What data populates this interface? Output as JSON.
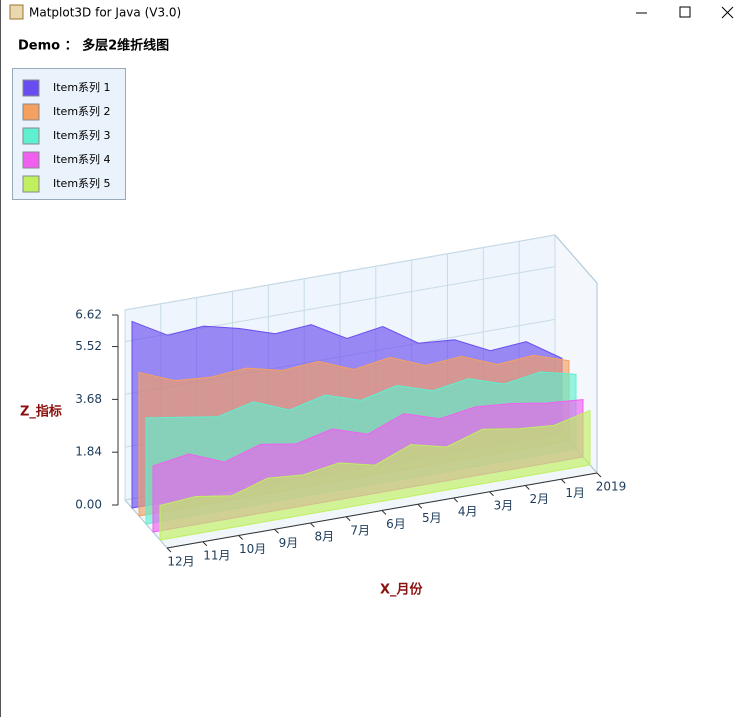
{
  "window": {
    "title": "Matplot3D for Java (V3.0)"
  },
  "chart_data": {
    "type": "area3d",
    "title": "Demo ： 多层2维折线图",
    "xlabel": "X_月份",
    "zlabel": "Z_指标",
    "categories": [
      "12月",
      "11月",
      "10月",
      "9月",
      "8月",
      "7月",
      "6月",
      "5月",
      "4月",
      "3月",
      "2月",
      "1月",
      "2019"
    ],
    "zlim": [
      0,
      6.62
    ],
    "zticks": [
      {
        "value": 0,
        "label": "0.00"
      },
      {
        "value": 1.84,
        "label": "1.84"
      },
      {
        "value": 3.68,
        "label": "3.68"
      },
      {
        "value": 5.52,
        "label": "5.52"
      },
      {
        "value": 6.62,
        "label": "6.62"
      }
    ],
    "grid": true,
    "legend": "upper left",
    "series": [
      {
        "name": "Item系列 1",
        "color": "#6a4df0",
        "values": [
          6.5,
          5.8,
          5.9,
          5.6,
          5.2,
          5.3,
          4.6,
          4.8,
          4.0,
          3.9,
          3.3,
          3.4,
          2.6
        ]
      },
      {
        "name": "Item系列 2",
        "color": "#f4a060",
        "values": [
          5.0,
          4.5,
          4.4,
          4.5,
          4.2,
          4.3,
          3.8,
          4.0,
          3.5,
          3.6,
          3.1,
          3.2,
          2.8
        ]
      },
      {
        "name": "Item系列 3",
        "color": "#5ef0d0",
        "values": [
          3.7,
          3.5,
          3.3,
          3.6,
          3.1,
          3.4,
          3.0,
          3.3,
          2.9,
          3.1,
          2.7,
          2.9,
          2.6
        ]
      },
      {
        "name": "Item系列 4",
        "color": "#f060f0",
        "values": [
          2.3,
          2.5,
          2.0,
          2.4,
          2.2,
          2.5,
          2.1,
          2.6,
          2.2,
          2.4,
          2.3,
          2.1,
          2.0
        ]
      },
      {
        "name": "Item系列 5",
        "color": "#c0f060",
        "values": [
          1.2,
          1.3,
          1.1,
          1.5,
          1.4,
          1.6,
          1.3,
          1.8,
          1.5,
          1.9,
          1.7,
          1.6,
          1.9
        ]
      }
    ]
  }
}
